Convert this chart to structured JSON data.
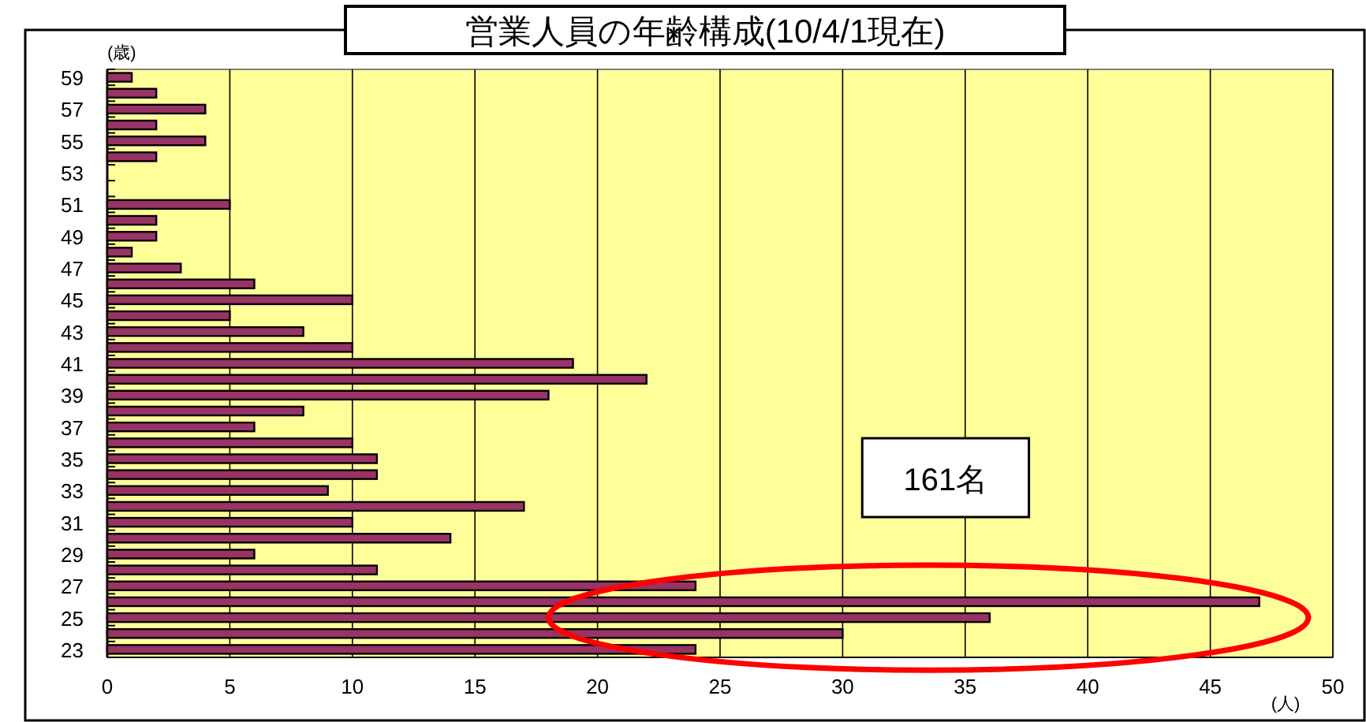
{
  "chart_data": {
    "type": "bar",
    "orientation": "horizontal",
    "title": "営業人員の年齢構成(10/4/1現在)",
    "ylabel": "(歳)",
    "xlabel": "(人)",
    "categories": [
      "59",
      null,
      "57",
      null,
      "55",
      null,
      "53",
      null,
      "51",
      null,
      "49",
      null,
      "47",
      null,
      "45",
      null,
      "43",
      null,
      "41",
      null,
      "39",
      null,
      "37",
      null,
      "35",
      null,
      "33",
      null,
      "31",
      null,
      "29",
      null,
      "27",
      null,
      "25",
      null,
      "23"
    ],
    "values": [
      1,
      2,
      4,
      2,
      4,
      2,
      0,
      0,
      5,
      2,
      2,
      1,
      3,
      6,
      10,
      5,
      8,
      10,
      19,
      22,
      18,
      8,
      6,
      10,
      11,
      11,
      9,
      17,
      10,
      14,
      6,
      11,
      24,
      47,
      36,
      30,
      24
    ],
    "color": "#993366",
    "xlim": [
      0,
      50
    ],
    "xticks": [
      0,
      5,
      10,
      15,
      20,
      25,
      30,
      35,
      40,
      45,
      50
    ],
    "grid": "x",
    "annotations": [
      "161名"
    ]
  }
}
